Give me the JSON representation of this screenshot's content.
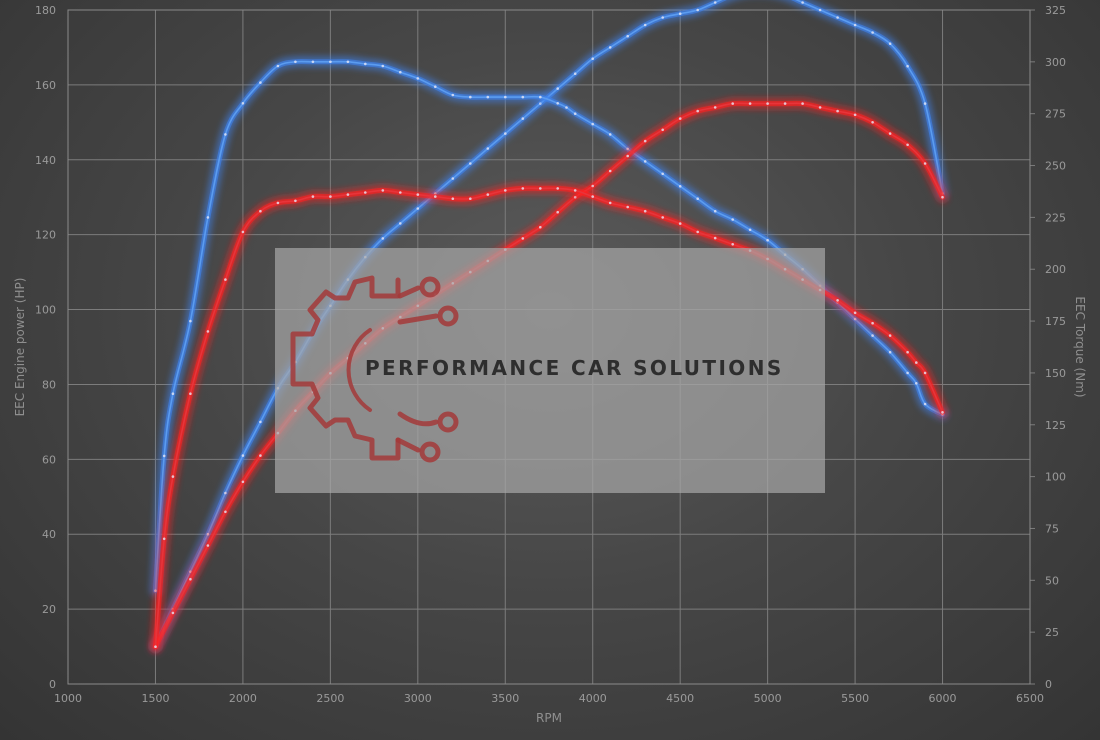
{
  "chart_data": {
    "type": "line",
    "xlabel": "RPM",
    "ylabel_left": "EEC Engine power (HP)",
    "ylabel_right": "EEC Torque (Nm)",
    "xlim": [
      1000,
      6500
    ],
    "x_ticks": [
      1000,
      1500,
      2000,
      2500,
      3000,
      3500,
      4000,
      4500,
      5000,
      5500,
      6000,
      6500
    ],
    "ylim_left": [
      0,
      180
    ],
    "y_ticks_left": [
      0,
      20,
      40,
      60,
      80,
      100,
      120,
      140,
      160,
      180
    ],
    "ylim_right": [
      0,
      325
    ],
    "y_ticks_right": [
      0,
      25,
      50,
      75,
      100,
      125,
      150,
      175,
      200,
      225,
      250,
      275,
      300,
      325
    ],
    "grid": true,
    "colors": {
      "blue": "#5b9cf0",
      "red": "#e8343a",
      "blue_glow": "#3f84f0",
      "red_glow": "#ff2020"
    },
    "series": [
      {
        "axis": "left",
        "color": "blue",
        "x": [
          1500,
          1600,
          1700,
          1800,
          1900,
          2000,
          2100,
          2200,
          2300,
          2400,
          2500,
          2600,
          2700,
          2800,
          2900,
          3000,
          3100,
          3200,
          3300,
          3400,
          3500,
          3600,
          3700,
          3800,
          3900,
          4000,
          4100,
          4200,
          4300,
          4400,
          4500,
          4600,
          4700,
          4800,
          4900,
          5000,
          5100,
          5200,
          5300,
          5400,
          5500,
          5600,
          5700,
          5800,
          5900,
          6000
        ],
        "y": [
          10,
          20,
          30,
          40,
          51,
          61,
          70,
          79,
          86,
          94,
          101,
          108,
          114,
          119,
          123,
          127,
          131,
          135,
          139,
          143,
          147,
          151,
          155,
          159,
          163,
          167,
          170,
          173,
          176,
          178,
          179,
          180,
          182,
          184,
          185,
          185,
          184,
          182,
          180,
          178,
          176,
          174,
          171,
          165,
          155,
          131
        ]
      },
      {
        "axis": "right",
        "color": "blue",
        "x": [
          1500,
          1550,
          1600,
          1700,
          1800,
          1900,
          2000,
          2100,
          2200,
          2300,
          2400,
          2500,
          2600,
          2700,
          2800,
          2900,
          3000,
          3100,
          3200,
          3300,
          3400,
          3500,
          3600,
          3700,
          3800,
          3850,
          3900,
          4000,
          4100,
          4200,
          4300,
          4400,
          4500,
          4600,
          4700,
          4800,
          4900,
          5000,
          5100,
          5200,
          5300,
          5400,
          5500,
          5600,
          5700,
          5800,
          5850,
          5900,
          6000
        ],
        "y": [
          45,
          110,
          140,
          175,
          225,
          265,
          280,
          290,
          298,
          300,
          300,
          300,
          300,
          299,
          298,
          295,
          292,
          288,
          284,
          283,
          283,
          283,
          283,
          283,
          280,
          278,
          275,
          270,
          265,
          258,
          252,
          246,
          240,
          234,
          228,
          224,
          219,
          214,
          207,
          200,
          192,
          184,
          176,
          168,
          160,
          150,
          145,
          135,
          130
        ]
      },
      {
        "axis": "left",
        "color": "red",
        "x": [
          1500,
          1600,
          1700,
          1800,
          1900,
          2000,
          2100,
          2200,
          2300,
          2400,
          2500,
          2600,
          2700,
          2800,
          2900,
          3000,
          3100,
          3200,
          3300,
          3400,
          3500,
          3600,
          3700,
          3800,
          3900,
          4000,
          4100,
          4200,
          4300,
          4400,
          4500,
          4600,
          4700,
          4800,
          4900,
          5000,
          5100,
          5200,
          5300,
          5400,
          5500,
          5600,
          5700,
          5800,
          5900,
          6000
        ],
        "y": [
          10,
          19,
          28,
          37,
          46,
          54,
          61,
          67,
          73,
          78,
          83,
          87,
          91,
          95,
          98,
          101,
          104,
          107,
          110,
          113,
          116,
          119,
          122,
          126,
          130,
          133,
          137,
          141,
          145,
          148,
          151,
          153,
          154,
          155,
          155,
          155,
          155,
          155,
          154,
          153,
          152,
          150,
          147,
          144,
          139,
          130
        ]
      },
      {
        "axis": "right",
        "color": "red",
        "x": [
          1500,
          1550,
          1600,
          1700,
          1800,
          1900,
          2000,
          2100,
          2200,
          2300,
          2400,
          2500,
          2600,
          2700,
          2800,
          2900,
          3000,
          3100,
          3200,
          3300,
          3400,
          3500,
          3600,
          3700,
          3800,
          3900,
          4000,
          4100,
          4200,
          4300,
          4400,
          4500,
          4600,
          4700,
          4800,
          4900,
          5000,
          5100,
          5200,
          5300,
          5400,
          5500,
          5600,
          5700,
          5800,
          5850,
          5900,
          6000
        ],
        "y": [
          18,
          70,
          100,
          140,
          170,
          195,
          218,
          228,
          232,
          233,
          235,
          235,
          236,
          237,
          238,
          237,
          236,
          235,
          234,
          234,
          236,
          238,
          239,
          239,
          239,
          238,
          235,
          232,
          230,
          228,
          225,
          222,
          218,
          215,
          212,
          209,
          205,
          200,
          195,
          190,
          185,
          179,
          174,
          168,
          160,
          155,
          150,
          131
        ]
      }
    ]
  },
  "watermark": {
    "text": "PERFORMANCE CAR SOLUTIONS",
    "logo_icon": "gear-circuit-logo-icon"
  }
}
